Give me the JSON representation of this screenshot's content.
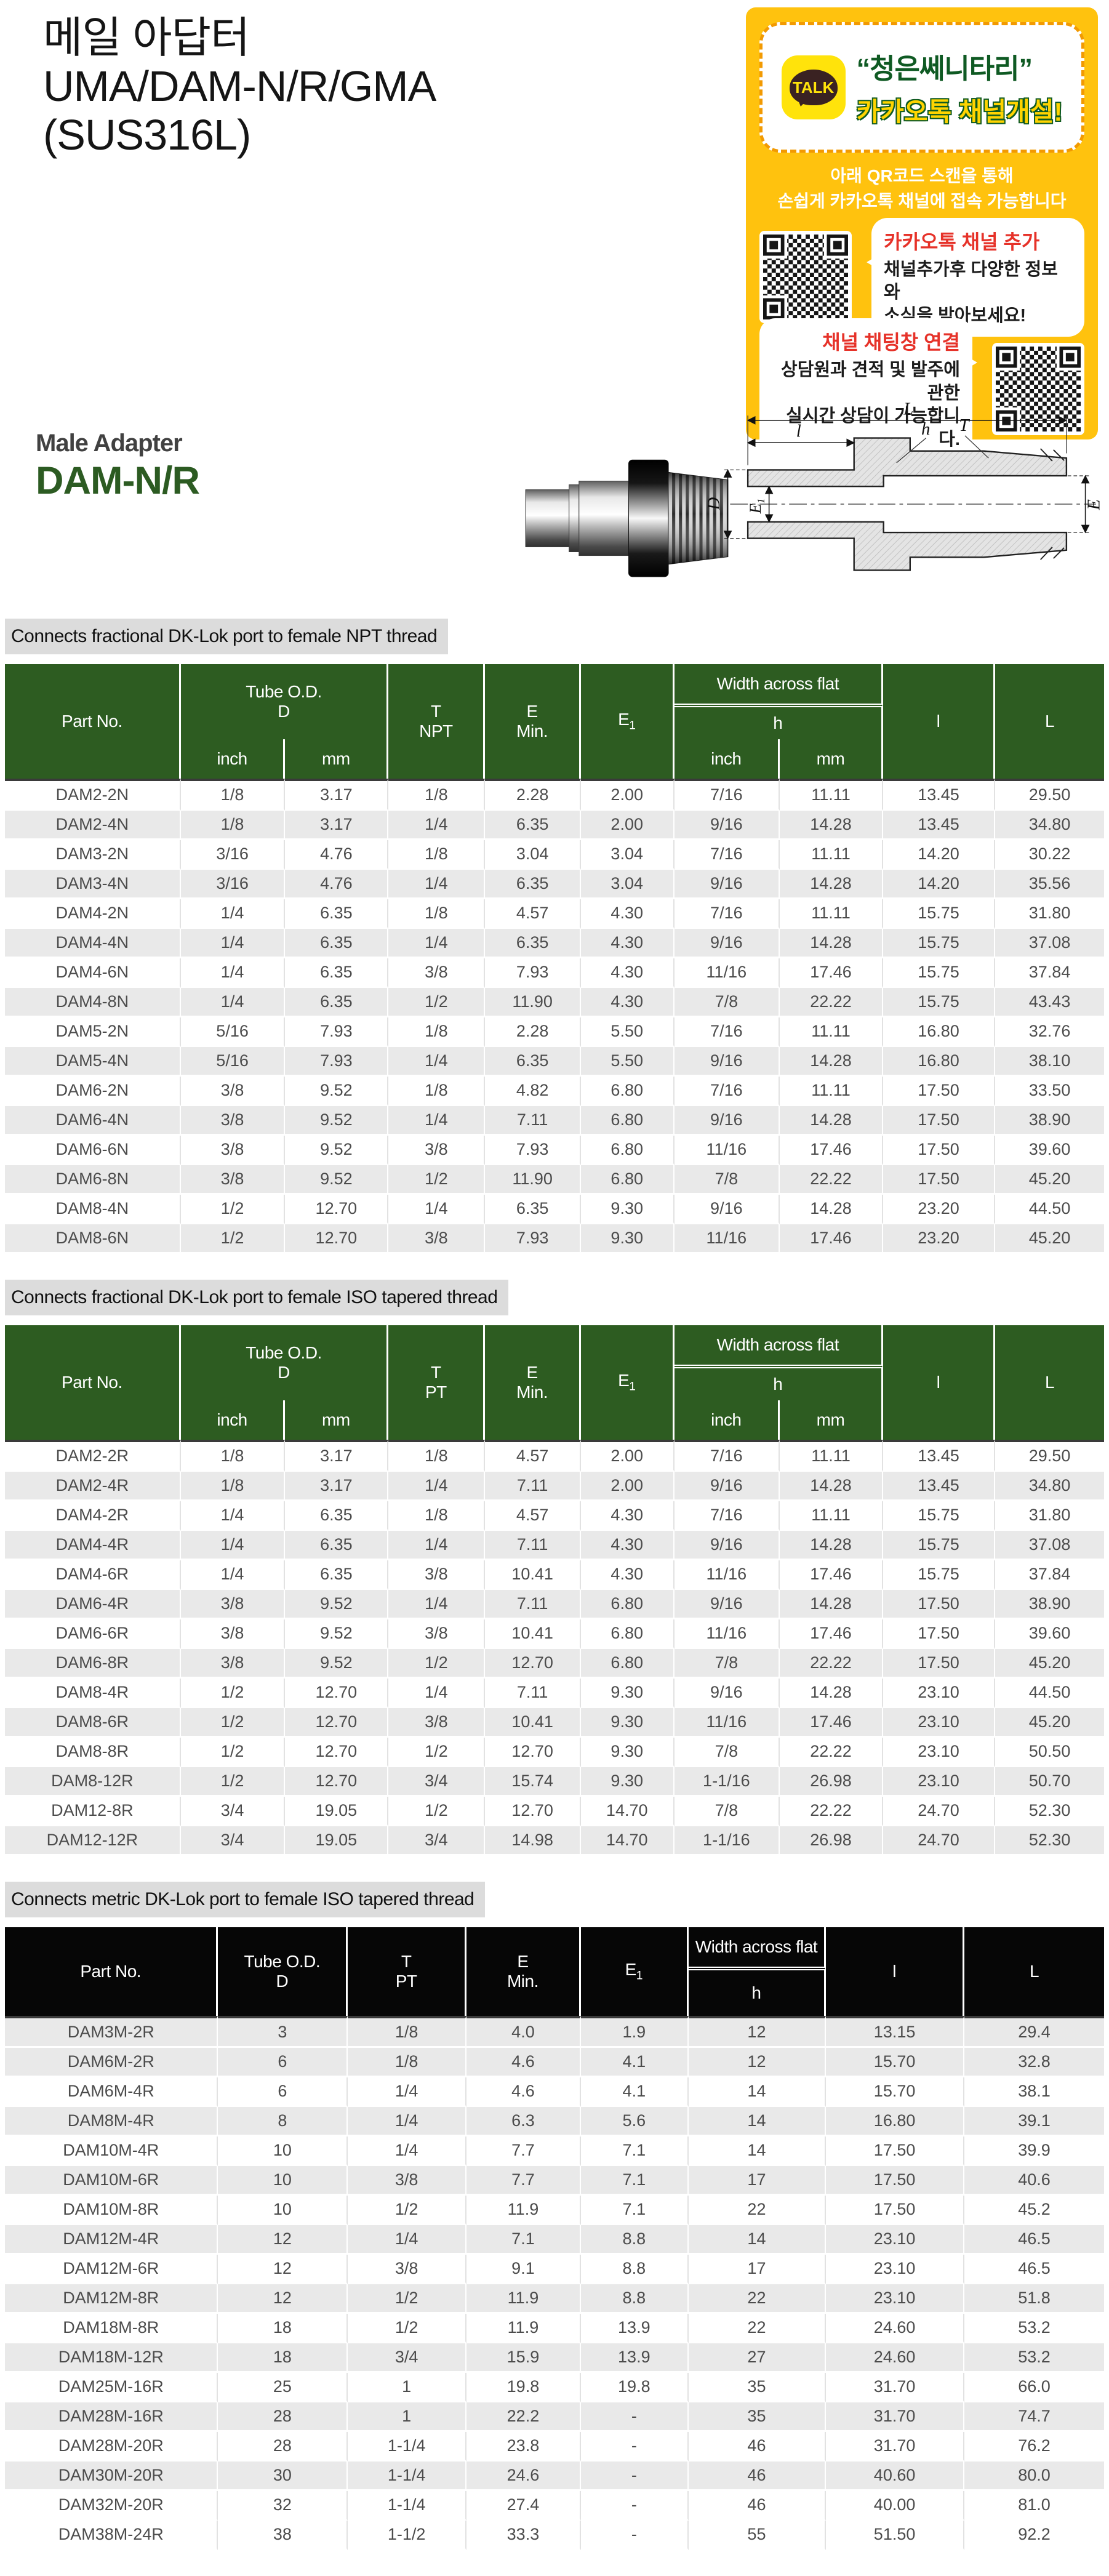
{
  "page": {
    "title_line1": "메일 아답터",
    "title_line2": "UMA/DAM-N/R/GMA",
    "title_line3": "(SUS316L)",
    "product_family": "Male Adapter",
    "product_code": "DAM-N/R"
  },
  "colors": {
    "kakao_yellow": "#ffc20e",
    "header_green": "#2d5c21",
    "header_black": "#060606",
    "zebra_gray": "#e9e9e9",
    "accent_red": "#e63229",
    "accent_green": "#0f5a23"
  },
  "kakao_card": {
    "talk_label": "TALK",
    "headline1": "“청은쎄니타리”",
    "headline2": "카카오톡 채널개설!",
    "desc_line1": "아래 QR코드 스캔을 통해",
    "desc_line2": "손쉽게 카카오톡 채널에 접속 가능합니다",
    "bubble1_title": "카카오톡 채널 추가",
    "bubble1_line1": "채널추가후 다양한 정보와",
    "bubble1_line2": "소식을 받아보세요!",
    "bubble2_title": "채널 채팅창 연결",
    "bubble2_line1": "상담원과 견적 및 발주에 관한",
    "bubble2_line2": "실시간 상담이 가능합니다."
  },
  "drawing": {
    "labels": {
      "L": "L",
      "l": "l",
      "h": "h",
      "T": "T",
      "D": "D",
      "E1_base": "E",
      "E1_sub": "1",
      "E": "E"
    }
  },
  "tables": [
    {
      "section_label": "Connects fractional DK-Lok port to female NPT thread",
      "headers": {
        "part_no": "Part No.",
        "tube_od_line1": "Tube O.D.",
        "tube_od_line2": "D",
        "t_line1": "T",
        "t_line2": "NPT",
        "e_line1": "E",
        "e_line2": "Min.",
        "e1_base": "E",
        "e1_sub": "1",
        "waf": "Width across flat",
        "h": "h",
        "inch": "inch",
        "mm": "mm",
        "l": "l",
        "L": "L"
      },
      "rows": [
        [
          "DAM2-2N",
          "1/8",
          "3.17",
          "1/8",
          "2.28",
          "2.00",
          "7/16",
          "11.11",
          "13.45",
          "29.50"
        ],
        [
          "DAM2-4N",
          "1/8",
          "3.17",
          "1/4",
          "6.35",
          "2.00",
          "9/16",
          "14.28",
          "13.45",
          "34.80"
        ],
        [
          "DAM3-2N",
          "3/16",
          "4.76",
          "1/8",
          "3.04",
          "3.04",
          "7/16",
          "11.11",
          "14.20",
          "30.22"
        ],
        [
          "DAM3-4N",
          "3/16",
          "4.76",
          "1/4",
          "6.35",
          "3.04",
          "9/16",
          "14.28",
          "14.20",
          "35.56"
        ],
        [
          "DAM4-2N",
          "1/4",
          "6.35",
          "1/8",
          "4.57",
          "4.30",
          "7/16",
          "11.11",
          "15.75",
          "31.80"
        ],
        [
          "DAM4-4N",
          "1/4",
          "6.35",
          "1/4",
          "6.35",
          "4.30",
          "9/16",
          "14.28",
          "15.75",
          "37.08"
        ],
        [
          "DAM4-6N",
          "1/4",
          "6.35",
          "3/8",
          "7.93",
          "4.30",
          "11/16",
          "17.46",
          "15.75",
          "37.84"
        ],
        [
          "DAM4-8N",
          "1/4",
          "6.35",
          "1/2",
          "11.90",
          "4.30",
          "7/8",
          "22.22",
          "15.75",
          "43.43"
        ],
        [
          "DAM5-2N",
          "5/16",
          "7.93",
          "1/8",
          "2.28",
          "5.50",
          "7/16",
          "11.11",
          "16.80",
          "32.76"
        ],
        [
          "DAM5-4N",
          "5/16",
          "7.93",
          "1/4",
          "6.35",
          "5.50",
          "9/16",
          "14.28",
          "16.80",
          "38.10"
        ],
        [
          "DAM6-2N",
          "3/8",
          "9.52",
          "1/8",
          "4.82",
          "6.80",
          "7/16",
          "11.11",
          "17.50",
          "33.50"
        ],
        [
          "DAM6-4N",
          "3/8",
          "9.52",
          "1/4",
          "7.11",
          "6.80",
          "9/16",
          "14.28",
          "17.50",
          "38.90"
        ],
        [
          "DAM6-6N",
          "3/8",
          "9.52",
          "3/8",
          "7.93",
          "6.80",
          "11/16",
          "17.46",
          "17.50",
          "39.60"
        ],
        [
          "DAM6-8N",
          "3/8",
          "9.52",
          "1/2",
          "11.90",
          "6.80",
          "7/8",
          "22.22",
          "17.50",
          "45.20"
        ],
        [
          "DAM8-4N",
          "1/2",
          "12.70",
          "1/4",
          "6.35",
          "9.30",
          "9/16",
          "14.28",
          "23.20",
          "44.50"
        ],
        [
          "DAM8-6N",
          "1/2",
          "12.70",
          "3/8",
          "7.93",
          "9.30",
          "11/16",
          "17.46",
          "23.20",
          "45.20"
        ]
      ]
    },
    {
      "section_label": "Connects fractional DK-Lok port to female ISO tapered thread",
      "headers": {
        "part_no": "Part No.",
        "tube_od_line1": "Tube O.D.",
        "tube_od_line2": "D",
        "t_line1": "T",
        "t_line2": "PT",
        "e_line1": "E",
        "e_line2": "Min.",
        "e1_base": "E",
        "e1_sub": "1",
        "waf": "Width across flat",
        "h": "h",
        "inch": "inch",
        "mm": "mm",
        "l": "l",
        "L": "L"
      },
      "rows": [
        [
          "DAM2-2R",
          "1/8",
          "3.17",
          "1/8",
          "4.57",
          "2.00",
          "7/16",
          "11.11",
          "13.45",
          "29.50"
        ],
        [
          "DAM2-4R",
          "1/8",
          "3.17",
          "1/4",
          "7.11",
          "2.00",
          "9/16",
          "14.28",
          "13.45",
          "34.80"
        ],
        [
          "DAM4-2R",
          "1/4",
          "6.35",
          "1/8",
          "4.57",
          "4.30",
          "7/16",
          "11.11",
          "15.75",
          "31.80"
        ],
        [
          "DAM4-4R",
          "1/4",
          "6.35",
          "1/4",
          "7.11",
          "4.30",
          "9/16",
          "14.28",
          "15.75",
          "37.08"
        ],
        [
          "DAM4-6R",
          "1/4",
          "6.35",
          "3/8",
          "10.41",
          "4.30",
          "11/16",
          "17.46",
          "15.75",
          "37.84"
        ],
        [
          "DAM6-4R",
          "3/8",
          "9.52",
          "1/4",
          "7.11",
          "6.80",
          "9/16",
          "14.28",
          "17.50",
          "38.90"
        ],
        [
          "DAM6-6R",
          "3/8",
          "9.52",
          "3/8",
          "10.41",
          "6.80",
          "11/16",
          "17.46",
          "17.50",
          "39.60"
        ],
        [
          "DAM6-8R",
          "3/8",
          "9.52",
          "1/2",
          "12.70",
          "6.80",
          "7/8",
          "22.22",
          "17.50",
          "45.20"
        ],
        [
          "DAM8-4R",
          "1/2",
          "12.70",
          "1/4",
          "7.11",
          "9.30",
          "9/16",
          "14.28",
          "23.10",
          "44.50"
        ],
        [
          "DAM8-6R",
          "1/2",
          "12.70",
          "3/8",
          "10.41",
          "9.30",
          "11/16",
          "17.46",
          "23.10",
          "45.20"
        ],
        [
          "DAM8-8R",
          "1/2",
          "12.70",
          "1/2",
          "12.70",
          "9.30",
          "7/8",
          "22.22",
          "23.10",
          "50.50"
        ],
        [
          "DAM8-12R",
          "1/2",
          "12.70",
          "3/4",
          "15.74",
          "9.30",
          "1-1/16",
          "26.98",
          "23.10",
          "50.70"
        ],
        [
          "DAM12-8R",
          "3/4",
          "19.05",
          "1/2",
          "12.70",
          "14.70",
          "7/8",
          "22.22",
          "24.70",
          "52.30"
        ],
        [
          "DAM12-12R",
          "3/4",
          "19.05",
          "3/4",
          "14.98",
          "14.70",
          "1-1/16",
          "26.98",
          "24.70",
          "52.30"
        ]
      ]
    },
    {
      "section_label": "Connects metric DK-Lok port to female ISO tapered thread",
      "headers": {
        "part_no": "Part No.",
        "tube_od_line1": "Tube O.D.",
        "tube_od_line2": "D",
        "t_line1": "T",
        "t_line2": "PT",
        "e_line1": "E",
        "e_line2": "Min.",
        "e1_base": "E",
        "e1_sub": "1",
        "waf": "Width across flat",
        "h": "h",
        "l": "l",
        "L": "L"
      },
      "rows": [
        [
          "DAM3M-2R",
          "3",
          "1/8",
          "4.0",
          "1.9",
          "12",
          "13.15",
          "29.4"
        ],
        [
          "DAM6M-2R",
          "6",
          "1/8",
          "4.6",
          "4.1",
          "12",
          "15.70",
          "32.8"
        ],
        [
          "DAM6M-4R",
          "6",
          "1/4",
          "4.6",
          "4.1",
          "14",
          "15.70",
          "38.1"
        ],
        [
          "DAM8M-4R",
          "8",
          "1/4",
          "6.3",
          "5.6",
          "14",
          "16.80",
          "39.1"
        ],
        [
          "DAM10M-4R",
          "10",
          "1/4",
          "7.7",
          "7.1",
          "14",
          "17.50",
          "39.9"
        ],
        [
          "DAM10M-6R",
          "10",
          "3/8",
          "7.7",
          "7.1",
          "17",
          "17.50",
          "40.6"
        ],
        [
          "DAM10M-8R",
          "10",
          "1/2",
          "11.9",
          "7.1",
          "22",
          "17.50",
          "45.2"
        ],
        [
          "DAM12M-4R",
          "12",
          "1/4",
          "7.1",
          "8.8",
          "14",
          "23.10",
          "46.5"
        ],
        [
          "DAM12M-6R",
          "12",
          "3/8",
          "9.1",
          "8.8",
          "17",
          "23.10",
          "46.5"
        ],
        [
          "DAM12M-8R",
          "12",
          "1/2",
          "11.9",
          "8.8",
          "22",
          "23.10",
          "51.8"
        ],
        [
          "DAM18M-8R",
          "18",
          "1/2",
          "11.9",
          "13.9",
          "22",
          "24.60",
          "53.2"
        ],
        [
          "DAM18M-12R",
          "18",
          "3/4",
          "15.9",
          "13.9",
          "27",
          "24.60",
          "53.2"
        ],
        [
          "DAM25M-16R",
          "25",
          "1",
          "19.8",
          "19.8",
          "35",
          "31.70",
          "66.0"
        ],
        [
          "DAM28M-16R",
          "28",
          "1",
          "22.2",
          "-",
          "35",
          "31.70",
          "74.7"
        ],
        [
          "DAM28M-20R",
          "28",
          "1-1/4",
          "23.8",
          "-",
          "46",
          "31.70",
          "76.2"
        ],
        [
          "DAM30M-20R",
          "30",
          "1-1/4",
          "24.6",
          "-",
          "46",
          "40.60",
          "80.0"
        ],
        [
          "DAM32M-20R",
          "32",
          "1-1/4",
          "27.4",
          "-",
          "46",
          "40.00",
          "81.0"
        ],
        [
          "DAM38M-24R",
          "38",
          "1-1/2",
          "33.3",
          "-",
          "55",
          "51.50",
          "92.2"
        ]
      ]
    }
  ]
}
